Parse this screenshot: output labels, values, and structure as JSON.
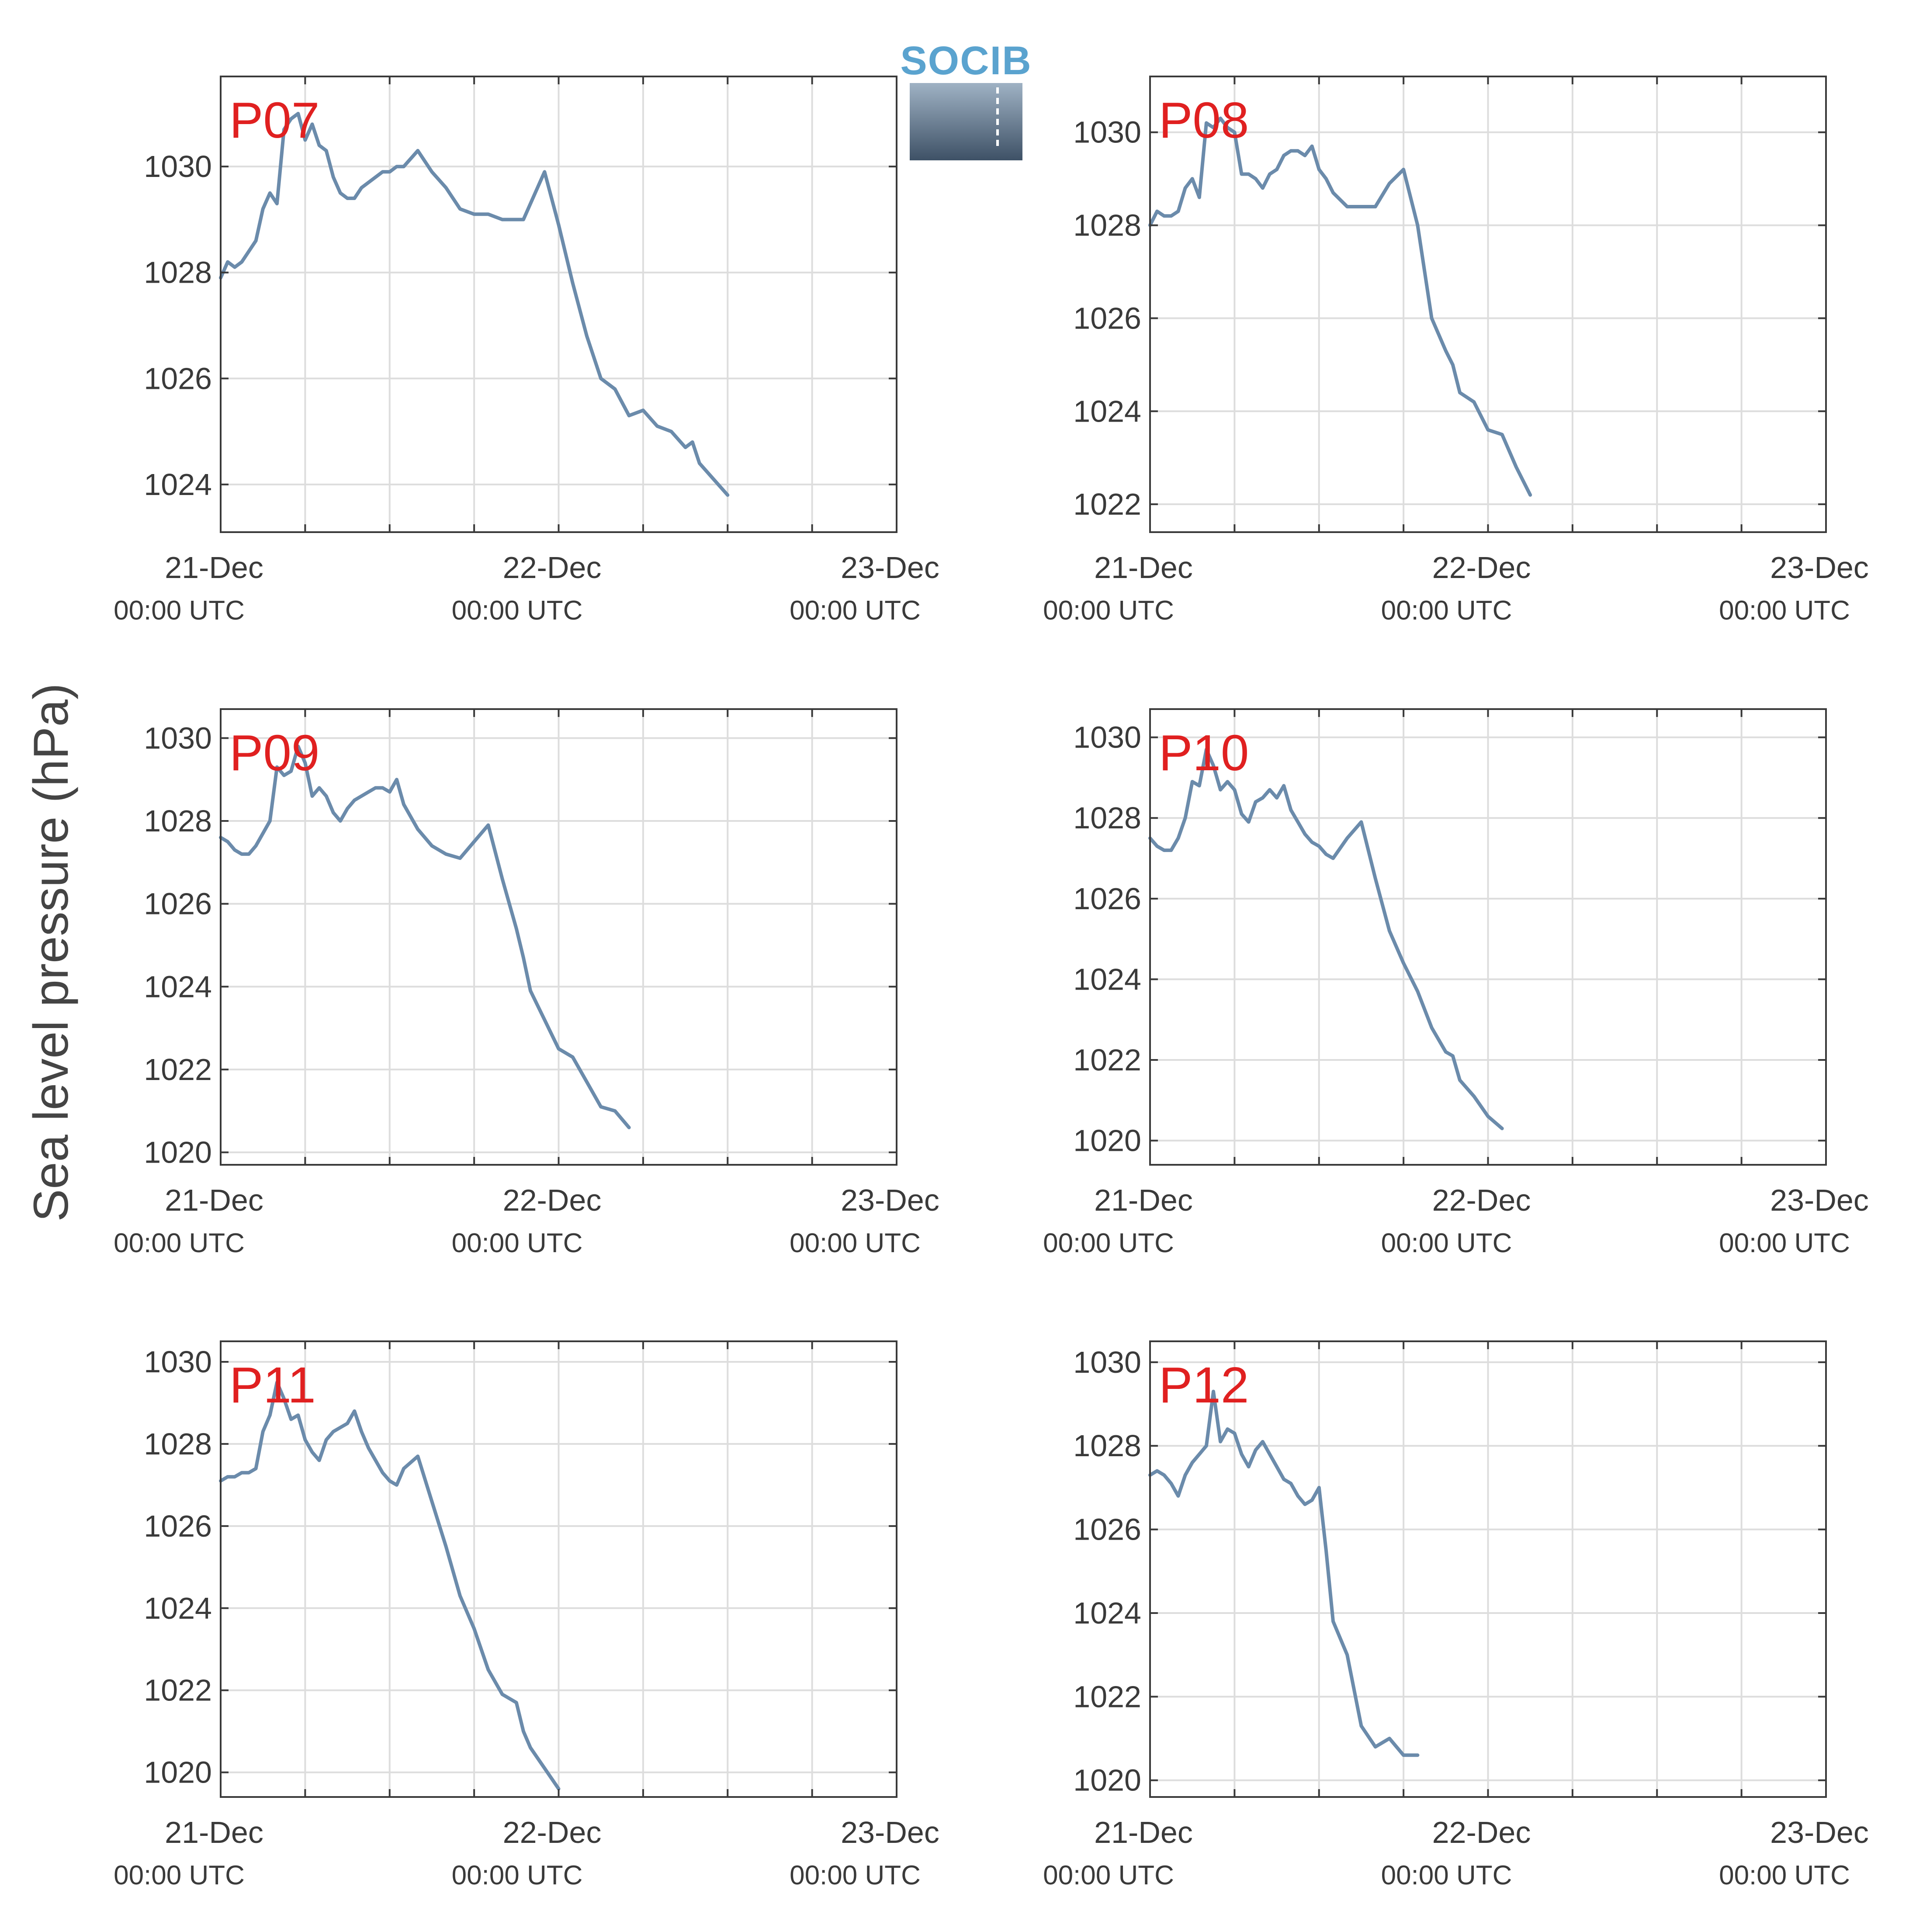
{
  "figure": {
    "ylabel": "Sea level pressure (hPa)",
    "logo_text": "SOCIB",
    "line_color": "#6b8bab",
    "station_label_color": "#e02020",
    "x_tick_date_labels": [
      "21-Dec",
      "22-Dec",
      "23-Dec"
    ],
    "x_tick_time_labels": [
      "00:00 UTC",
      "00:00 UTC",
      "00:00 UTC"
    ]
  },
  "chart_data": [
    {
      "type": "line",
      "title": "P07",
      "grid": true,
      "x_unit": "hours since 21-Dec 00:00 UTC",
      "xlim": [
        0,
        48
      ],
      "ylim": [
        1023.1,
        1031.7
      ],
      "yticks": [
        1024,
        1026,
        1028,
        1030
      ],
      "x": [
        0,
        0.5,
        1,
        1.5,
        2,
        2.5,
        3,
        3.5,
        4,
        4.5,
        5,
        5.5,
        6,
        6.5,
        7,
        7.5,
        8,
        8.5,
        9,
        9.5,
        10,
        10.5,
        11,
        11.5,
        12,
        12.5,
        13,
        14,
        15,
        16,
        17,
        18,
        19,
        20,
        21,
        21.5,
        22,
        23,
        24,
        25,
        26,
        27,
        28,
        29,
        30,
        31,
        32,
        33,
        33.5,
        34,
        35,
        36,
        37,
        38,
        39,
        40,
        41,
        42,
        43,
        44,
        45,
        46,
        47,
        47.5,
        48
      ],
      "y": [
        1027.9,
        1028.2,
        1028.1,
        1028.2,
        1028.4,
        1028.6,
        1029.2,
        1029.5,
        1029.3,
        1030.7,
        1030.9,
        1031.0,
        1030.5,
        1030.8,
        1030.4,
        1030.3,
        1029.8,
        1029.5,
        1029.4,
        1029.4,
        1029.6,
        1029.7,
        1029.8,
        1029.9,
        1029.9,
        1030.0,
        1030.0,
        1030.3,
        1029.9,
        1029.6,
        1029.2,
        1029.1,
        1029.1,
        1029.0,
        1029.0,
        1029.0,
        1029.3,
        1029.9,
        1028.9,
        1027.8,
        1026.8,
        1026.0,
        1025.8,
        1025.3,
        1025.4,
        1025.1,
        1025.0,
        1024.7,
        1024.8,
        1024.4,
        1024.1,
        1023.8,
        null,
        null,
        null,
        null,
        null,
        null,
        null,
        null,
        null,
        null,
        null,
        null,
        null
      ]
    },
    {
      "type": "line",
      "title": "P08",
      "grid": true,
      "x_unit": "hours since 21-Dec 00:00 UTC",
      "xlim": [
        0,
        48
      ],
      "ylim": [
        1021.4,
        1031.2
      ],
      "yticks": [
        1022,
        1024,
        1026,
        1028,
        1030
      ],
      "x": [
        0,
        0.5,
        1,
        1.5,
        2,
        2.5,
        3,
        3.5,
        4,
        4.5,
        5,
        5.5,
        6,
        6.5,
        7,
        7.5,
        8,
        8.5,
        9,
        9.5,
        10,
        10.5,
        11,
        11.5,
        12,
        12.5,
        13,
        14,
        15,
        16,
        17,
        18,
        19,
        20,
        21,
        21.5,
        22,
        23,
        24,
        25,
        26,
        27,
        28,
        29,
        30,
        31,
        32,
        33,
        33.5,
        34,
        35,
        36,
        37,
        38,
        39,
        40,
        41,
        42,
        43,
        44,
        45,
        46,
        47,
        47.5,
        48
      ],
      "y": [
        1028.0,
        1028.3,
        1028.2,
        1028.2,
        1028.3,
        1028.8,
        1029.0,
        1028.6,
        1030.2,
        1030.1,
        1030.3,
        1030.1,
        1030.0,
        1029.1,
        1029.1,
        1029.0,
        1028.8,
        1029.1,
        1029.2,
        1029.5,
        1029.6,
        1029.6,
        1029.5,
        1029.7,
        1029.2,
        1029.0,
        1028.7,
        1028.4,
        1028.4,
        1028.4,
        1028.9,
        1029.2,
        1028.0,
        1026.0,
        1025.3,
        1025.0,
        1024.4,
        1024.2,
        1023.6,
        1023.5,
        1022.8,
        1022.2,
        null,
        null,
        null,
        null,
        null,
        null,
        null,
        null,
        null,
        null,
        null,
        null,
        null,
        null,
        null,
        null,
        null,
        null,
        null,
        null,
        null,
        null,
        null
      ]
    },
    {
      "type": "line",
      "title": "P09",
      "grid": true,
      "x_unit": "hours since 21-Dec 00:00 UTC",
      "xlim": [
        0,
        48
      ],
      "ylim": [
        1019.7,
        1030.7
      ],
      "yticks": [
        1020,
        1022,
        1024,
        1026,
        1028,
        1030
      ],
      "x": [
        0,
        0.5,
        1,
        1.5,
        2,
        2.5,
        3,
        3.5,
        4,
        4.5,
        5,
        5.5,
        6,
        6.5,
        7,
        7.5,
        8,
        8.5,
        9,
        9.5,
        10,
        10.5,
        11,
        11.5,
        12,
        12.5,
        13,
        14,
        15,
        16,
        17,
        18,
        19,
        20,
        21,
        21.5,
        22,
        23,
        24,
        25,
        26,
        27,
        28,
        29,
        30,
        31,
        32,
        33,
        33.5,
        34,
        35,
        36,
        37,
        38,
        39,
        40,
        41,
        42,
        43,
        44,
        45,
        46,
        47,
        47.5,
        48
      ],
      "y": [
        1027.6,
        1027.5,
        1027.3,
        1027.2,
        1027.2,
        1027.4,
        1027.7,
        1028.0,
        1029.3,
        1029.1,
        1029.2,
        1029.8,
        1029.4,
        1028.6,
        1028.8,
        1028.6,
        1028.2,
        1028.0,
        1028.3,
        1028.5,
        1028.6,
        1028.7,
        1028.8,
        1028.8,
        1028.7,
        1029.0,
        1028.4,
        1027.8,
        1027.4,
        1027.2,
        1027.1,
        1027.5,
        1027.9,
        1026.6,
        1025.4,
        1024.7,
        1023.9,
        1023.2,
        1022.5,
        1022.3,
        1021.7,
        1021.1,
        1021.0,
        1020.6,
        null,
        null,
        null,
        null,
        null,
        null,
        null,
        null,
        null,
        null,
        null,
        null,
        null,
        null,
        null,
        null,
        null,
        null,
        null,
        null,
        null
      ]
    },
    {
      "type": "line",
      "title": "P10",
      "grid": true,
      "x_unit": "hours since 21-Dec 00:00 UTC",
      "xlim": [
        0,
        48
      ],
      "ylim": [
        1019.4,
        1030.7
      ],
      "yticks": [
        1020,
        1022,
        1024,
        1026,
        1028,
        1030
      ],
      "x": [
        0,
        0.5,
        1,
        1.5,
        2,
        2.5,
        3,
        3.5,
        4,
        4.5,
        5,
        5.5,
        6,
        6.5,
        7,
        7.5,
        8,
        8.5,
        9,
        9.5,
        10,
        10.5,
        11,
        11.5,
        12,
        12.5,
        13,
        14,
        15,
        16,
        17,
        18,
        19,
        20,
        21,
        21.5,
        22,
        23,
        24,
        25,
        26,
        27,
        28,
        29,
        30,
        31,
        32,
        33,
        33.5,
        34,
        35,
        36,
        37,
        38,
        39,
        40,
        41,
        42,
        43,
        44,
        45,
        46,
        47,
        47.5,
        48
      ],
      "y": [
        1027.5,
        1027.3,
        1027.2,
        1027.2,
        1027.5,
        1028.0,
        1028.9,
        1028.8,
        1029.7,
        1029.3,
        1028.7,
        1028.9,
        1028.7,
        1028.1,
        1027.9,
        1028.4,
        1028.5,
        1028.7,
        1028.5,
        1028.8,
        1028.2,
        1027.9,
        1027.6,
        1027.4,
        1027.3,
        1027.1,
        1027.0,
        1027.5,
        1027.9,
        1026.5,
        1025.2,
        1024.4,
        1023.7,
        1022.8,
        1022.2,
        1022.1,
        1021.5,
        1021.1,
        1020.6,
        1020.3,
        null,
        null,
        null,
        null,
        null,
        null,
        null,
        null,
        null,
        null,
        null,
        null,
        null,
        null,
        null,
        null,
        null,
        null,
        null,
        null,
        null,
        null,
        null,
        null,
        null
      ]
    },
    {
      "type": "line",
      "title": "P11",
      "grid": true,
      "x_unit": "hours since 21-Dec 00:00 UTC",
      "xlim": [
        0,
        48
      ],
      "ylim": [
        1019.4,
        1030.5
      ],
      "yticks": [
        1020,
        1022,
        1024,
        1026,
        1028,
        1030
      ],
      "x": [
        0,
        0.5,
        1,
        1.5,
        2,
        2.5,
        3,
        3.5,
        4,
        4.5,
        5,
        5.5,
        6,
        6.5,
        7,
        7.5,
        8,
        8.5,
        9,
        9.5,
        10,
        10.5,
        11,
        11.5,
        12,
        12.5,
        13,
        14,
        15,
        16,
        17,
        18,
        19,
        20,
        21,
        21.5,
        22,
        23,
        24,
        25,
        26,
        27,
        28,
        29,
        30,
        31,
        32,
        33,
        33.5,
        34,
        35,
        36,
        37,
        38,
        39,
        40,
        41,
        42,
        43,
        44,
        45,
        46,
        47,
        47.5,
        48
      ],
      "y": [
        1027.1,
        1027.2,
        1027.2,
        1027.3,
        1027.3,
        1027.4,
        1028.3,
        1028.7,
        1029.5,
        1029.1,
        1028.6,
        1028.7,
        1028.1,
        1027.8,
        1027.6,
        1028.1,
        1028.3,
        1028.4,
        1028.5,
        1028.8,
        1028.3,
        1027.9,
        1027.6,
        1027.3,
        1027.1,
        1027.0,
        1027.4,
        1027.7,
        1026.6,
        1025.5,
        1024.3,
        1023.5,
        1022.5,
        1021.9,
        1021.7,
        1021.0,
        1020.6,
        1020.1,
        1019.6,
        null,
        null,
        null,
        null,
        null,
        null,
        null,
        null,
        null,
        null,
        null,
        null,
        null,
        null,
        null,
        null,
        null,
        null,
        null,
        null,
        null,
        null,
        null,
        null,
        null,
        null
      ]
    },
    {
      "type": "line",
      "title": "P12",
      "grid": true,
      "x_unit": "hours since 21-Dec 00:00 UTC",
      "xlim": [
        0,
        48
      ],
      "ylim": [
        1019.6,
        1030.5
      ],
      "yticks": [
        1020,
        1022,
        1024,
        1026,
        1028,
        1030
      ],
      "x": [
        0,
        0.5,
        1,
        1.5,
        2,
        2.5,
        3,
        3.5,
        4,
        4.5,
        5,
        5.5,
        6,
        6.5,
        7,
        7.5,
        8,
        8.5,
        9,
        9.5,
        10,
        10.5,
        11,
        11.5,
        12,
        12.5,
        13,
        14,
        15,
        16,
        17,
        18,
        19,
        20,
        21,
        21.5,
        22,
        23,
        24,
        25,
        26,
        27,
        28,
        29,
        30,
        31,
        32,
        33,
        33.5,
        34,
        35,
        36,
        37,
        38,
        39,
        40,
        41,
        42,
        43,
        44,
        45,
        46,
        47,
        47.5,
        48
      ],
      "y": [
        1027.3,
        1027.4,
        1027.3,
        1027.1,
        1026.8,
        1027.3,
        1027.6,
        1027.8,
        1028.0,
        1029.3,
        1028.1,
        1028.4,
        1028.3,
        1027.8,
        1027.5,
        1027.9,
        1028.1,
        1027.8,
        1027.5,
        1027.2,
        1027.1,
        1026.8,
        1026.6,
        1026.7,
        1027.0,
        1025.5,
        1023.8,
        1023.0,
        1021.3,
        1020.8,
        1021.0,
        1020.6,
        1020.6,
        null,
        null,
        null,
        null,
        null,
        null,
        null,
        null,
        null,
        null,
        null,
        null,
        null,
        null,
        null,
        null,
        null,
        null,
        null,
        null,
        null,
        null,
        null,
        null,
        null,
        null,
        null,
        null,
        null,
        null,
        null,
        null
      ]
    }
  ]
}
